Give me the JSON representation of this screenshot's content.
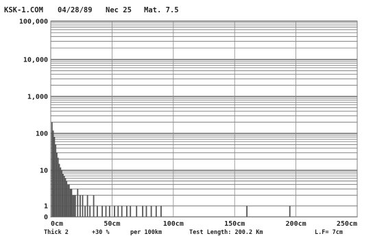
{
  "header": {
    "file": "KSK-1.COM",
    "date": "04/28/89",
    "nec": "Nec 25",
    "mat": "Mat. 7.5"
  },
  "footer": {
    "thick": "Thick 2",
    "percent": "+30 %",
    "per": "per 100km",
    "test_length": "Test Length:  200.2 Km",
    "lf": "L.F= 7cm"
  },
  "chart_data": {
    "type": "bar",
    "title": "",
    "xlabel": "",
    "ylabel": "",
    "y_scale": "log",
    "ylim": [
      0,
      100000
    ],
    "xlim": [
      0,
      250
    ],
    "x_unit": "cm",
    "grid": true,
    "y_tick_labels": [
      "0",
      "1",
      "10",
      "100",
      "1,000",
      "10,000",
      "100,000"
    ],
    "x_tick_labels": [
      "0cm",
      "50cm",
      "100cm",
      "150cm",
      "200cm",
      "250cm"
    ],
    "x": [
      1,
      2,
      3,
      4,
      5,
      6,
      7,
      8,
      9,
      10,
      11,
      12,
      13,
      14,
      15,
      16,
      17,
      18,
      19,
      20,
      22,
      24,
      26,
      28,
      30,
      32,
      35,
      38,
      42,
      45,
      48,
      52,
      55,
      58,
      62,
      65,
      70,
      75,
      78,
      82,
      86,
      90,
      160,
      195
    ],
    "values": [
      200,
      120,
      80,
      50,
      30,
      22,
      15,
      12,
      10,
      8,
      7,
      6,
      5,
      4,
      4,
      3,
      3,
      2,
      2,
      2,
      3,
      2,
      2,
      1,
      2,
      1,
      2,
      1,
      1,
      1,
      1,
      1,
      1,
      1,
      1,
      1,
      1,
      1,
      1,
      1,
      1,
      1,
      1,
      1
    ]
  }
}
